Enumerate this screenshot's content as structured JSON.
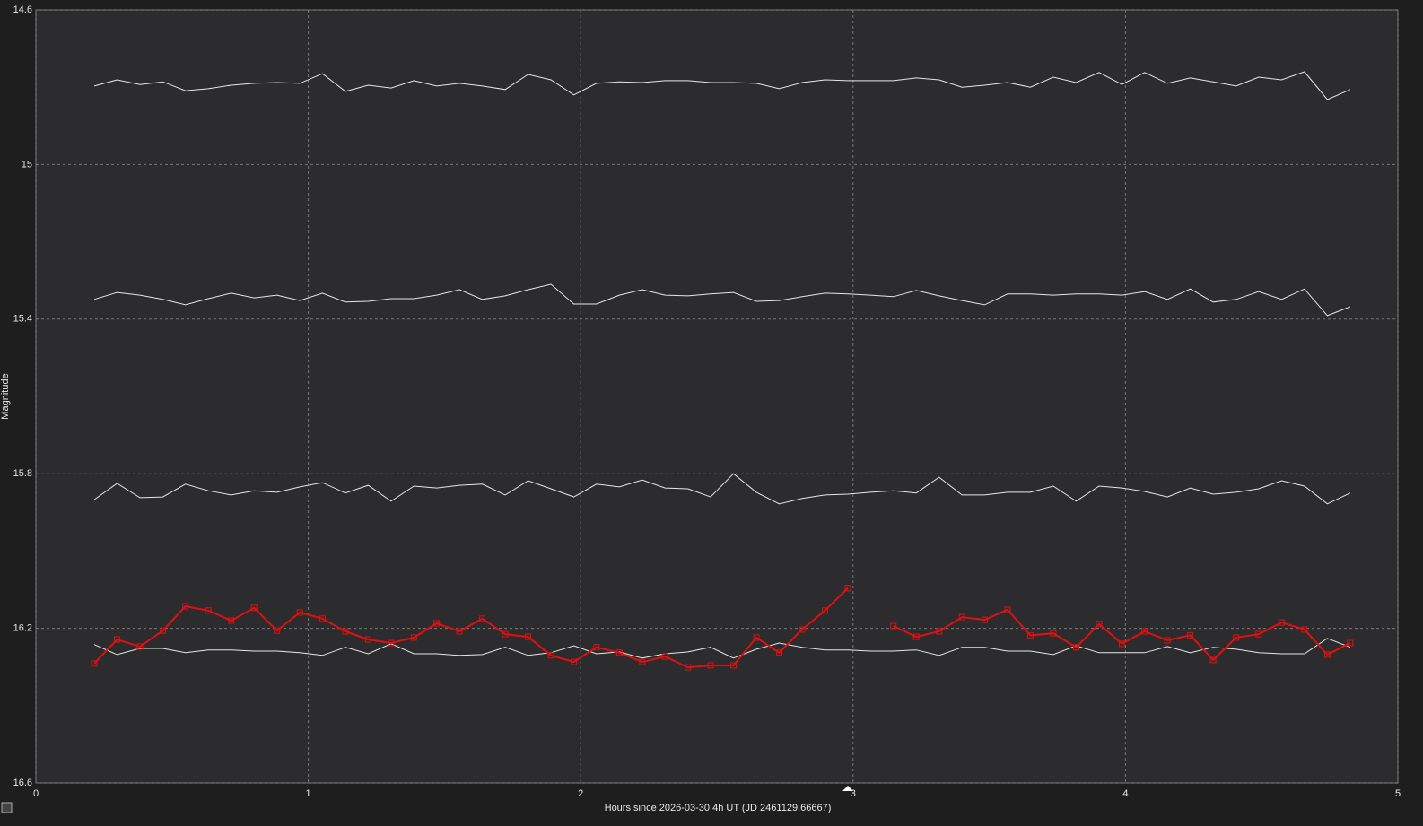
{
  "chart_data": {
    "type": "line",
    "x_label": "Hours since 2026-03-30 4h UT (JD 2461129.66667)",
    "y_label": "Magnitude",
    "xlim": [
      0,
      5
    ],
    "xticks": [
      0,
      1,
      2,
      3,
      4,
      5
    ],
    "ylim": [
      16.6,
      14.6
    ],
    "yticks": [
      14.6,
      15,
      15.4,
      15.8,
      16.2,
      16.6
    ],
    "grid": true,
    "x": [
      0.214,
      0.298,
      0.382,
      0.466,
      0.549,
      0.633,
      0.717,
      0.801,
      0.885,
      0.969,
      1.052,
      1.136,
      1.22,
      1.304,
      1.388,
      1.471,
      1.555,
      1.639,
      1.723,
      1.807,
      1.891,
      1.975,
      2.058,
      2.142,
      2.226,
      2.31,
      2.394,
      2.477,
      2.561,
      2.645,
      2.729,
      2.813,
      2.897,
      2.981,
      3.064,
      3.148,
      3.232,
      3.316,
      3.4,
      3.483,
      3.567,
      3.651,
      3.735,
      3.819,
      3.903,
      3.987,
      4.07,
      4.154,
      4.238,
      4.322,
      4.406,
      4.489,
      4.573,
      4.657,
      4.741,
      4.825
    ],
    "series": [
      {
        "color": "#e6e6e6",
        "markers": false,
        "values": [
          14.797,
          14.781,
          14.793,
          14.786,
          14.809,
          14.804,
          14.795,
          14.79,
          14.788,
          14.79,
          14.765,
          14.811,
          14.795,
          14.802,
          14.783,
          14.797,
          14.79,
          14.797,
          14.806,
          14.767,
          14.781,
          14.82,
          14.79,
          14.786,
          14.788,
          14.783,
          14.783,
          14.788,
          14.788,
          14.79,
          14.804,
          14.788,
          14.781,
          14.783,
          14.783,
          14.783,
          14.776,
          14.781,
          14.8,
          14.795,
          14.788,
          14.8,
          14.774,
          14.788,
          14.762,
          14.793,
          14.762,
          14.79,
          14.776,
          14.786,
          14.797,
          14.774,
          14.781,
          14.76,
          14.832,
          14.806
        ]
      },
      {
        "color": "#e6e6e6",
        "markers": false,
        "values": [
          15.349,
          15.331,
          15.338,
          15.349,
          15.363,
          15.347,
          15.333,
          15.345,
          15.338,
          15.352,
          15.333,
          15.356,
          15.354,
          15.347,
          15.347,
          15.338,
          15.324,
          15.349,
          15.34,
          15.324,
          15.31,
          15.361,
          15.361,
          15.338,
          15.324,
          15.338,
          15.34,
          15.335,
          15.331,
          15.354,
          15.352,
          15.342,
          15.333,
          15.335,
          15.338,
          15.342,
          15.326,
          15.34,
          15.352,
          15.363,
          15.335,
          15.335,
          15.338,
          15.335,
          15.335,
          15.338,
          15.329,
          15.349,
          15.322,
          15.356,
          15.349,
          15.329,
          15.349,
          15.322,
          15.391,
          15.368
        ]
      },
      {
        "color": "#e6e6e6",
        "markers": false,
        "values": [
          15.867,
          15.825,
          15.862,
          15.86,
          15.827,
          15.844,
          15.855,
          15.844,
          15.848,
          15.834,
          15.823,
          15.85,
          15.83,
          15.871,
          15.832,
          15.837,
          15.83,
          15.827,
          15.855,
          15.818,
          15.839,
          15.86,
          15.827,
          15.834,
          15.816,
          15.837,
          15.839,
          15.86,
          15.8,
          15.848,
          15.878,
          15.864,
          15.855,
          15.853,
          15.848,
          15.844,
          15.85,
          15.809,
          15.855,
          15.855,
          15.848,
          15.848,
          15.832,
          15.871,
          15.832,
          15.837,
          15.846,
          15.86,
          15.837,
          15.853,
          15.848,
          15.839,
          15.818,
          15.832,
          15.878,
          15.85
        ]
      },
      {
        "color": "#e6e6e6",
        "markers": false,
        "values": [
          16.242,
          16.268,
          16.252,
          16.252,
          16.263,
          16.256,
          16.256,
          16.259,
          16.259,
          16.263,
          16.27,
          16.249,
          16.266,
          16.24,
          16.266,
          16.266,
          16.27,
          16.268,
          16.249,
          16.27,
          16.263,
          16.245,
          16.266,
          16.261,
          16.277,
          16.266,
          16.261,
          16.249,
          16.277,
          16.254,
          16.238,
          16.249,
          16.256,
          16.256,
          16.259,
          16.259,
          16.256,
          16.27,
          16.249,
          16.249,
          16.259,
          16.259,
          16.268,
          16.245,
          16.263,
          16.263,
          16.263,
          16.247,
          16.263,
          16.249,
          16.254,
          16.263,
          16.266,
          16.266,
          16.226,
          16.249
        ]
      },
      {
        "color": "#e01010",
        "markers": true,
        "values": [
          16.291,
          16.229,
          16.247,
          16.206,
          16.143,
          16.154,
          16.18,
          16.147,
          16.206,
          16.159,
          16.175,
          16.208,
          16.229,
          16.238,
          16.224,
          16.187,
          16.208,
          16.175,
          16.215,
          16.222,
          16.27,
          16.287,
          16.249,
          16.263,
          16.287,
          16.273,
          16.301,
          16.296,
          16.296,
          16.224,
          16.263,
          16.203,
          16.154,
          16.096,
          null,
          16.194,
          16.222,
          16.208,
          16.171,
          16.178,
          16.152,
          16.218,
          16.213,
          16.249,
          16.189,
          16.24,
          16.208,
          16.231,
          16.218,
          16.282,
          16.224,
          16.215,
          16.185,
          16.203,
          16.268,
          16.238
        ]
      }
    ]
  }
}
